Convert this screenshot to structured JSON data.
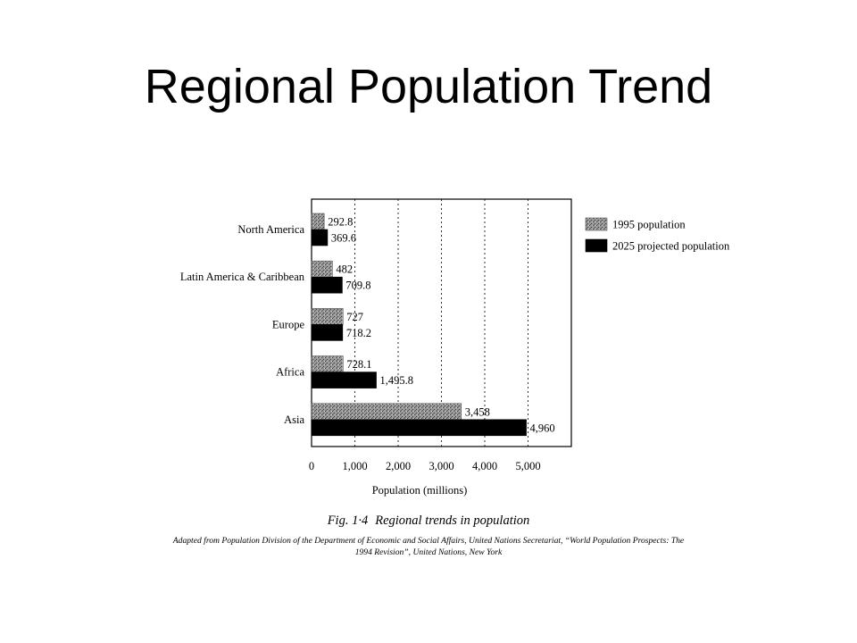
{
  "slide": {
    "title": "Regional Population Trend"
  },
  "figure": {
    "number": "Fig. 1·4",
    "caption": "Regional trends in population",
    "source": "Adapted from Population Division of the Department of Economic and Social Affairs, United Nations Secretariat, “World Population Prospects: The 1994 Revision”, United Nations, New York"
  },
  "chart_data": {
    "type": "bar",
    "orientation": "horizontal",
    "categories": [
      "North America",
      "Latin America & Caribbean",
      "Europe",
      "Africa",
      "Asia"
    ],
    "series": [
      {
        "name": "1995 population",
        "color": "#8a8a8a",
        "values": [
          292.8,
          482,
          727,
          728.1,
          3458
        ],
        "labels": [
          "292.8",
          "482",
          "727",
          "728.1",
          "3,458"
        ]
      },
      {
        "name": "2025 projected population",
        "color": "#000000",
        "values": [
          369.6,
          709.8,
          718.2,
          1495.8,
          4960
        ],
        "labels": [
          "369.6",
          "709.8",
          "718.2",
          "1,495.8",
          "4,960"
        ]
      }
    ],
    "xlabel": "Population (millions)",
    "xlim": [
      0,
      6000
    ],
    "xticks": [
      0,
      1000,
      2000,
      3000,
      4000,
      5000
    ],
    "xtick_labels": [
      "0",
      "1,000",
      "2,000",
      "3,000",
      "4,000",
      "5,000"
    ],
    "grid": "vertical dashed",
    "legend_position": "right"
  }
}
